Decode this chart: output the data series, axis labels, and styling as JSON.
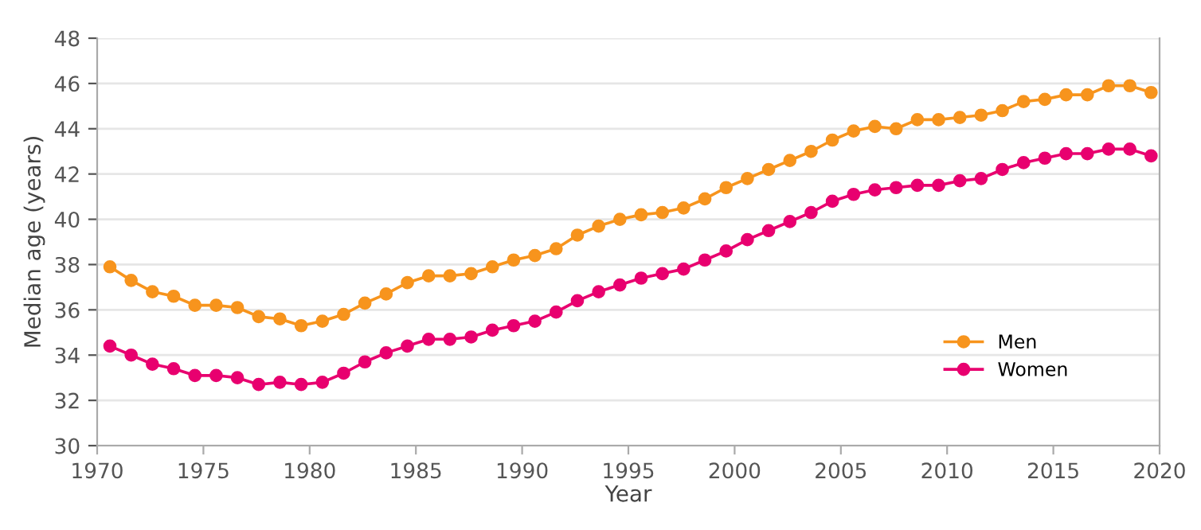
{
  "chart_data": {
    "type": "line",
    "xlabel": "Year",
    "ylabel": "Median age (years)",
    "x": [
      1970.6,
      1971.6,
      1972.6,
      1973.6,
      1974.6,
      1975.6,
      1976.6,
      1977.6,
      1978.6,
      1979.6,
      1980.6,
      1981.6,
      1982.6,
      1983.6,
      1984.6,
      1985.6,
      1986.6,
      1987.6,
      1988.6,
      1989.6,
      1990.6,
      1991.6,
      1992.6,
      1993.6,
      1994.6,
      1995.6,
      1996.6,
      1997.6,
      1998.6,
      1999.6,
      2000.6,
      2001.6,
      2002.6,
      2003.6,
      2004.6,
      2005.6,
      2006.6,
      2007.6,
      2008.6,
      2009.6,
      2010.6,
      2011.6,
      2012.6,
      2013.6,
      2014.6,
      2015.6,
      2016.6,
      2017.6,
      2018.6,
      2019.6
    ],
    "series": [
      {
        "name": "Men",
        "color": "#f7941d",
        "values": [
          37.9,
          37.3,
          36.8,
          36.6,
          36.2,
          36.2,
          36.1,
          35.7,
          35.6,
          35.3,
          35.5,
          35.8,
          36.3,
          36.7,
          37.2,
          37.5,
          37.5,
          37.6,
          37.9,
          38.2,
          38.4,
          38.7,
          39.3,
          39.7,
          40.0,
          40.2,
          40.3,
          40.5,
          40.9,
          41.4,
          41.8,
          42.2,
          42.6,
          43.0,
          43.5,
          43.9,
          44.1,
          44.0,
          44.4,
          44.4,
          44.5,
          44.6,
          44.8,
          45.2,
          45.3,
          45.5,
          45.5,
          45.9,
          45.9,
          45.6
        ]
      },
      {
        "name": "Women",
        "color": "#e8006f",
        "values": [
          34.4,
          34.0,
          33.6,
          33.4,
          33.1,
          33.1,
          33.0,
          32.7,
          32.8,
          32.7,
          32.8,
          33.2,
          33.7,
          34.1,
          34.4,
          34.7,
          34.7,
          34.8,
          35.1,
          35.3,
          35.5,
          35.9,
          36.4,
          36.8,
          37.1,
          37.4,
          37.6,
          37.8,
          38.2,
          38.6,
          39.1,
          39.5,
          39.9,
          40.3,
          40.8,
          41.1,
          41.3,
          41.4,
          41.5,
          41.5,
          41.7,
          41.8,
          42.2,
          42.5,
          42.7,
          42.9,
          42.9,
          43.1,
          43.1,
          42.8
        ]
      }
    ],
    "xlim": [
      1970,
      2020
    ],
    "xticks": [
      1970,
      1975,
      1980,
      1985,
      1990,
      1995,
      2000,
      2005,
      2010,
      2015,
      2020
    ],
    "ylim": [
      30,
      48
    ],
    "yticks": [
      30,
      32,
      34,
      36,
      38,
      40,
      42,
      44,
      46,
      48
    ],
    "grid": "y",
    "legend": "bottom right",
    "marker": "circle",
    "line_style": "solid"
  }
}
